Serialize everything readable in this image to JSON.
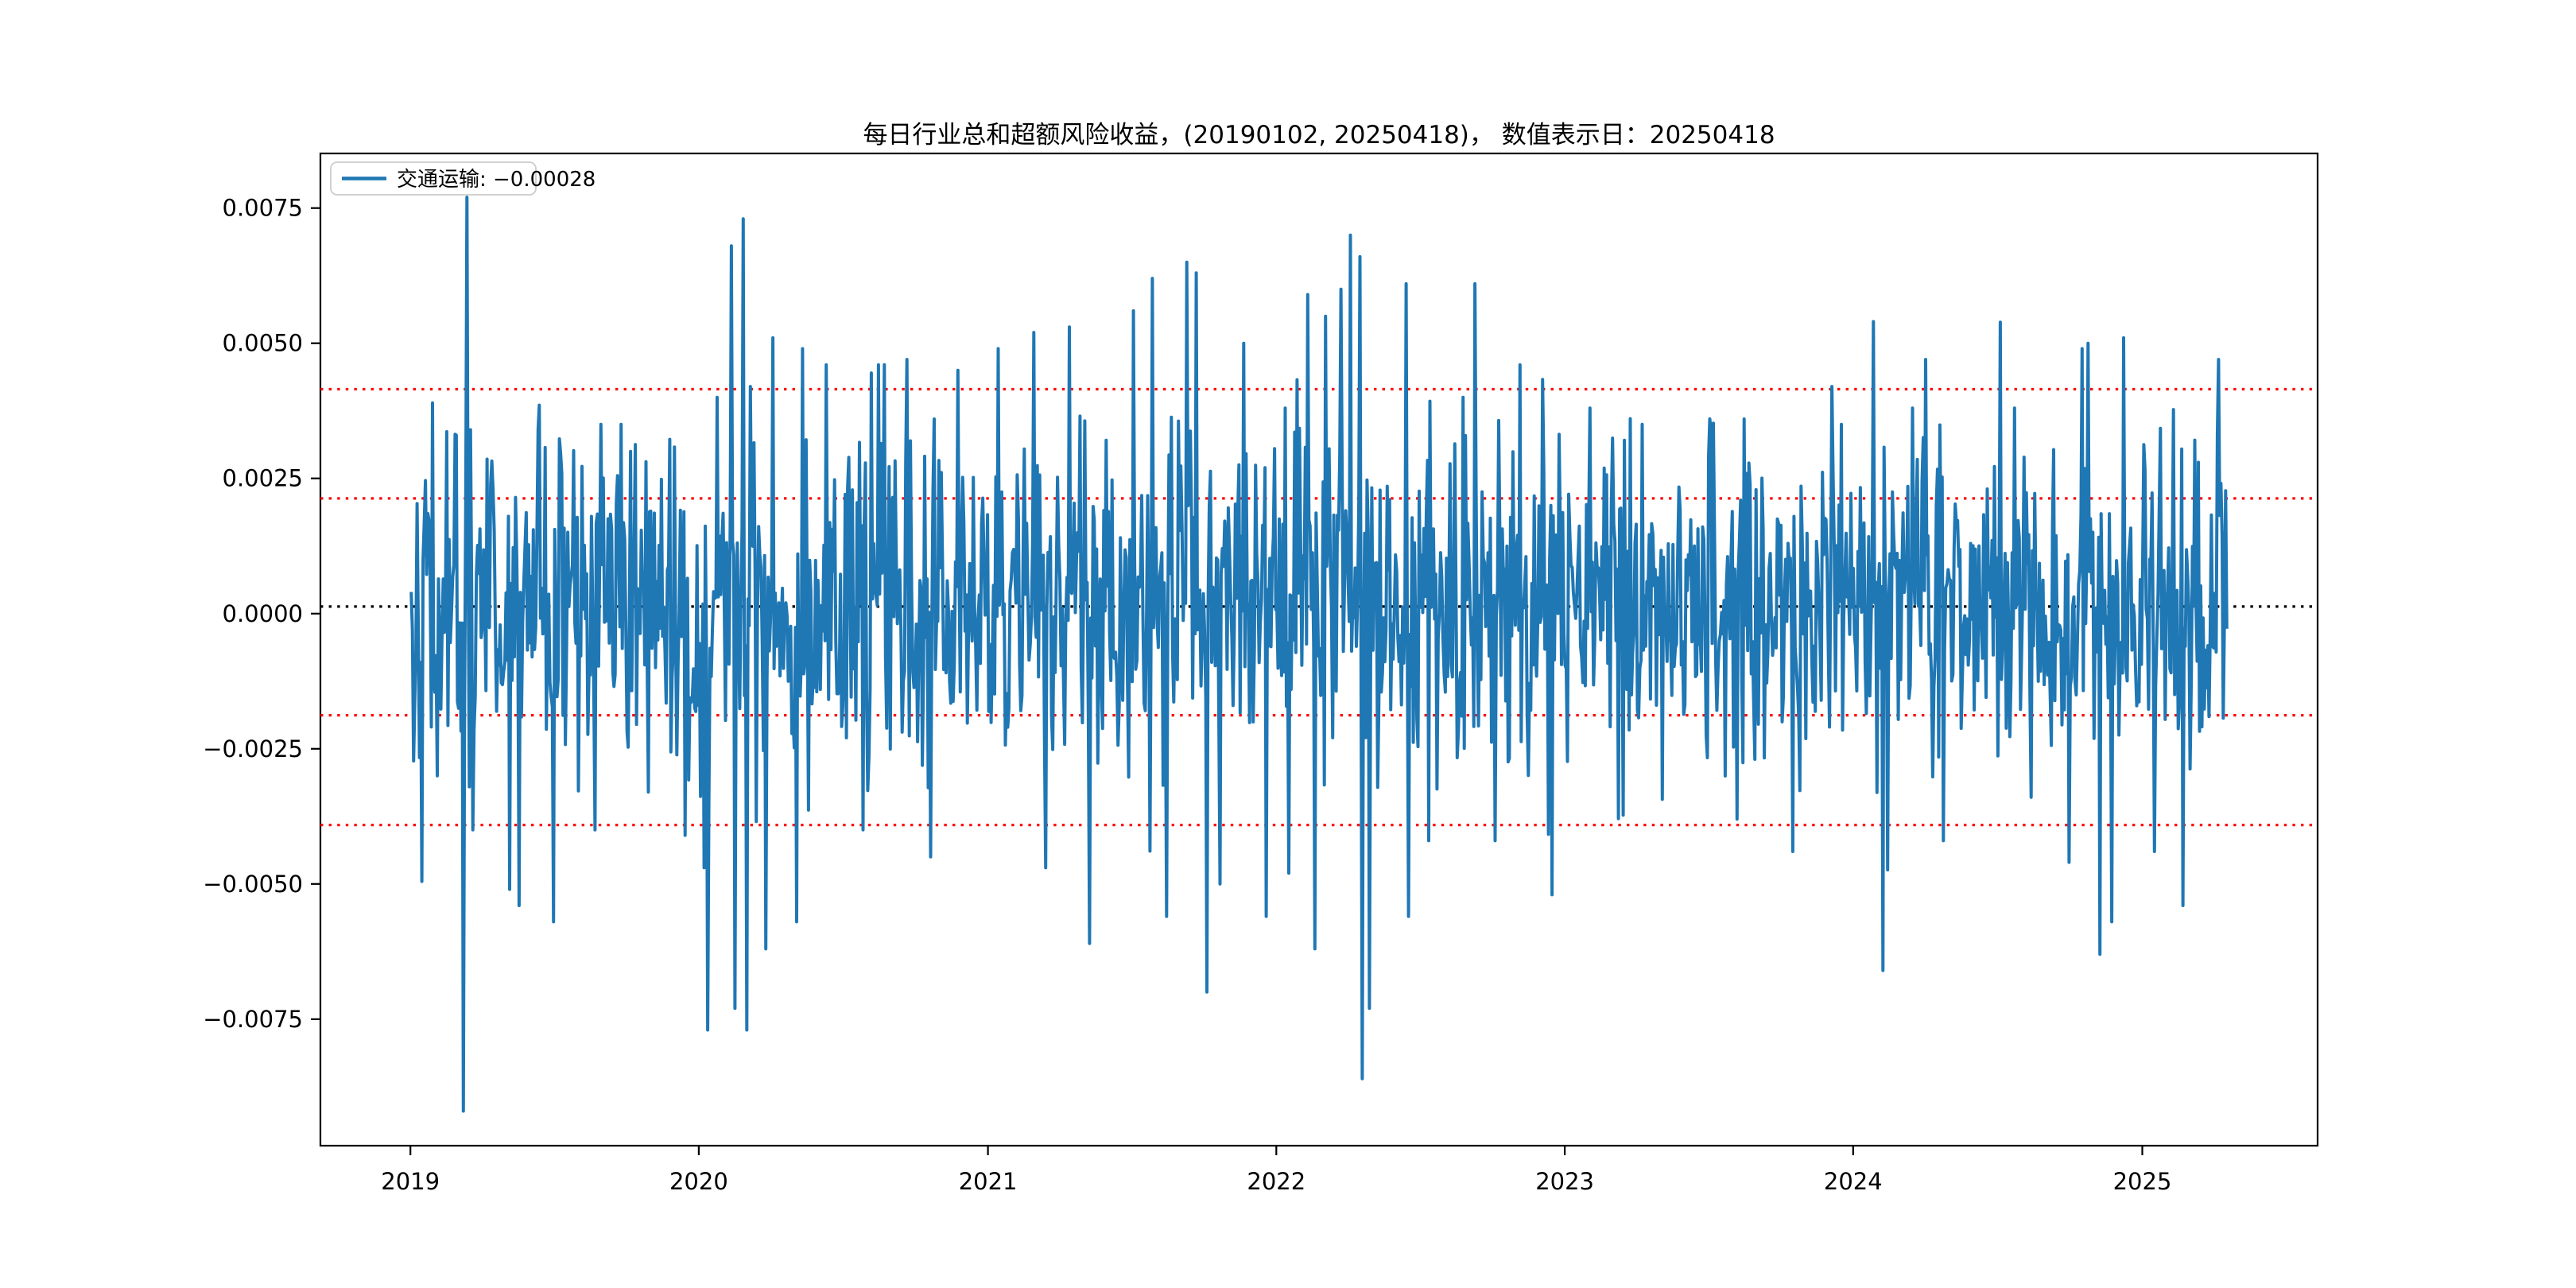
{
  "figure": {
    "title": "每日行业总和超额风险收益，(20190102, 20250418)， 数值表示日：20250418",
    "background": "#ffffff"
  },
  "legend": {
    "label": "交通运输: −0.00028",
    "series_color": "#1f77b4",
    "border_color": "#cccccc",
    "fill": "rgba(255,255,255,0.8)"
  },
  "chart_data": {
    "type": "line",
    "title": "每日行业总和超额风险收益，(20190102, 20250418)， 数值表示日：20250418",
    "xlabel": "",
    "ylabel": "",
    "grid": false,
    "legend_position": "upper-left",
    "ylim": [
      -0.00984,
      0.00851
    ],
    "y_ticks": [
      {
        "label": "0.0075",
        "value": 0.0075
      },
      {
        "label": "0.0050",
        "value": 0.005
      },
      {
        "label": "0.0025",
        "value": 0.0025
      },
      {
        "label": "0.0000",
        "value": 0.0
      },
      {
        "label": "−0.0025",
        "value": -0.0025
      },
      {
        "label": "−0.0050",
        "value": -0.005
      },
      {
        "label": "−0.0075",
        "value": -0.0075
      }
    ],
    "x_ticks": [
      {
        "label": "2019",
        "day": -1
      },
      {
        "label": "2020",
        "day": 364
      },
      {
        "label": "2021",
        "day": 730
      },
      {
        "label": "2022",
        "day": 1095
      },
      {
        "label": "2023",
        "day": 1460
      },
      {
        "label": "2024",
        "day": 1825
      },
      {
        "label": "2025",
        "day": 2191
      }
    ],
    "x_day_span": 2298,
    "x_margin_days": 114.9,
    "ref_lines": [
      {
        "name": "mean-plus-2std",
        "value": 0.00415,
        "color": "#ff0000",
        "style": "dotted"
      },
      {
        "name": "mean-plus-1std",
        "value": 0.00213,
        "color": "#ff0000",
        "style": "dotted"
      },
      {
        "name": "mean-line",
        "value": 0.00013,
        "color": "#000000",
        "style": "dotted"
      },
      {
        "name": "mean-minus-1std",
        "value": -0.00188,
        "color": "#ff0000",
        "style": "dotted"
      },
      {
        "name": "mean-minus-2std",
        "value": -0.00391,
        "color": "#ff0000",
        "style": "dotted"
      }
    ],
    "series": [
      {
        "name": "交通运输",
        "color": "#1f77b4",
        "start_date": "20190102",
        "end_date": "20250418",
        "n_points": 1532,
        "last_value": -0.00028,
        "noise_mean": 0.00013,
        "noise_sigma": 0.00155,
        "seed": 42,
        "key_points": [
          [
            0,
            0.0004
          ],
          [
            22,
            -0.003
          ],
          [
            38,
            0.0033
          ],
          [
            44,
            -0.0092
          ],
          [
            47,
            0.0077
          ],
          [
            50,
            0.0034
          ],
          [
            52,
            -0.004
          ],
          [
            69,
            0.0023
          ],
          [
            83,
            -0.0051
          ],
          [
            91,
            -0.0054
          ],
          [
            107,
            0.0034
          ],
          [
            120,
            -0.0057
          ],
          [
            155,
            -0.004
          ],
          [
            160,
            0.0035
          ],
          [
            185,
            0.003
          ],
          [
            200,
            -0.0033
          ],
          [
            231,
            -0.0041
          ],
          [
            247,
            -0.0047
          ],
          [
            250,
            -0.0077
          ],
          [
            258,
            0.004
          ],
          [
            270,
            0.0068
          ],
          [
            273,
            -0.0073
          ],
          [
            280,
            0.0073
          ],
          [
            283,
            -0.0077
          ],
          [
            286,
            0.0042
          ],
          [
            299,
            -0.0062
          ],
          [
            305,
            0.0051
          ],
          [
            325,
            -0.0057
          ],
          [
            330,
            0.0049
          ],
          [
            350,
            0.0046
          ],
          [
            381,
            -0.004
          ],
          [
            394,
            0.0046
          ],
          [
            418,
            0.0047
          ],
          [
            438,
            -0.0045
          ],
          [
            461,
            0.0045
          ],
          [
            495,
            0.0049
          ],
          [
            525,
            0.0052
          ],
          [
            535,
            -0.0047
          ],
          [
            555,
            0.0053
          ],
          [
            572,
            -0.0061
          ],
          [
            609,
            0.0056
          ],
          [
            625,
            0.0062
          ],
          [
            637,
            -0.0056
          ],
          [
            654,
            0.0065
          ],
          [
            662,
            0.0063
          ],
          [
            671,
            -0.007
          ],
          [
            682,
            -0.005
          ],
          [
            702,
            0.005
          ],
          [
            721,
            -0.0056
          ],
          [
            737,
            0.0038
          ],
          [
            740,
            -0.0048
          ],
          [
            756,
            0.0059
          ],
          [
            762,
            -0.0062
          ],
          [
            771,
            0.0055
          ],
          [
            784,
            0.006
          ],
          [
            792,
            0.007
          ],
          [
            800,
            0.0066
          ],
          [
            802,
            -0.0086
          ],
          [
            808,
            -0.0073
          ],
          [
            839,
            0.0061
          ],
          [
            841,
            -0.0056
          ],
          [
            858,
            -0.0042
          ],
          [
            887,
            0.004
          ],
          [
            897,
            0.0061
          ],
          [
            914,
            -0.0042
          ],
          [
            935,
            0.0046
          ],
          [
            962,
            -0.0052
          ],
          [
            994,
            0.0038
          ],
          [
            1038,
            0.0035
          ],
          [
            1095,
            0.0036
          ],
          [
            1118,
            -0.0038
          ],
          [
            1165,
            -0.0044
          ],
          [
            1198,
            0.0042
          ],
          [
            1206,
            0.0035
          ],
          [
            1233,
            0.0054
          ],
          [
            1241,
            -0.0066
          ],
          [
            1266,
            0.0038
          ],
          [
            1277,
            0.0047
          ],
          [
            1292,
            -0.0042
          ],
          [
            1352,
            0.0038
          ],
          [
            1398,
            -0.0046
          ],
          [
            1409,
            0.0049
          ],
          [
            1414,
            0.005
          ],
          [
            1424,
            -0.0063
          ],
          [
            1434,
            -0.0057
          ],
          [
            1444,
            0.0051
          ],
          [
            1470,
            -0.0044
          ],
          [
            1494,
            -0.0054
          ],
          [
            1524,
            0.0047
          ],
          [
            1531,
            -0.00028
          ]
        ]
      }
    ]
  }
}
